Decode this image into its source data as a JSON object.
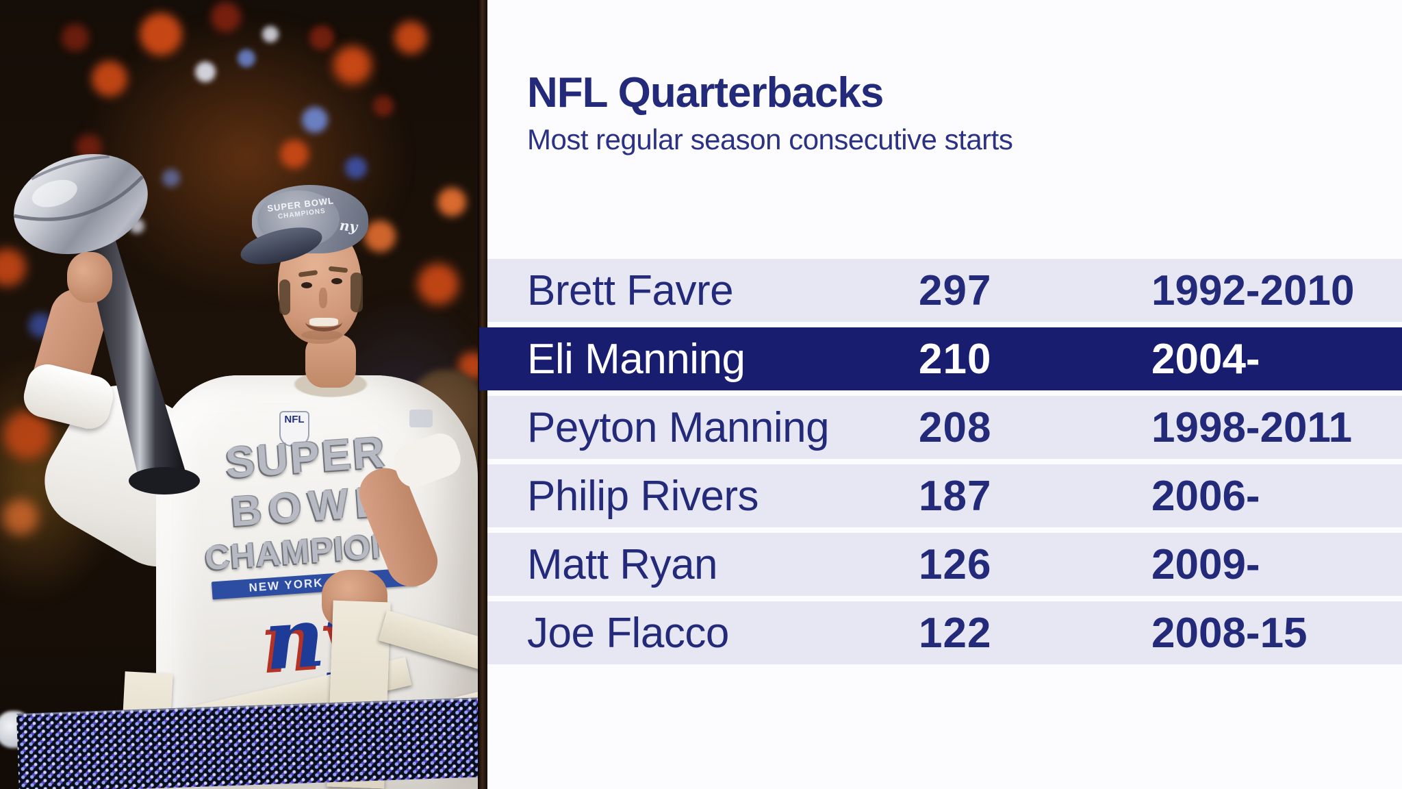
{
  "chart_data": {
    "type": "table",
    "title": "NFL Quarterbacks",
    "subtitle": "Most regular season consecutive starts",
    "rows": [
      {
        "player": "Brett Favre",
        "starts": 297,
        "years": "1992-2010",
        "highlighted": false
      },
      {
        "player": "Eli Manning",
        "starts": 210,
        "years": "2004-",
        "highlighted": true
      },
      {
        "player": "Peyton Manning",
        "starts": 208,
        "years": "1998-2011",
        "highlighted": false
      },
      {
        "player": "Philip Rivers",
        "starts": 187,
        "years": "2006-",
        "highlighted": false
      },
      {
        "player": "Matt Ryan",
        "starts": 126,
        "years": "2009-",
        "highlighted": false
      },
      {
        "player": "Joe Flacco",
        "starts": 122,
        "years": "2008-15",
        "highlighted": false
      }
    ],
    "colors": {
      "text_navy": "#232a7a",
      "title_navy": "#1f2478",
      "subtitle_navy": "#2b3285",
      "row_background": "#e6e7f2",
      "highlight_background": "#191d70",
      "highlight_text": "#ffffff",
      "panel_background": "#fcfcfe"
    },
    "legend_position": "none",
    "grid": false
  },
  "photo": {
    "alt": "Eli Manning holding the Vince Lombardi Trophy amid confetti",
    "shirt": {
      "line1": "SUPER",
      "line2": "BOWL",
      "line3": "CHAMPIONS",
      "band": "NEW YORK GIANTS",
      "logo": "ny",
      "patch": "NFL"
    },
    "cap": {
      "front_line1": "SUPER BOWL",
      "front_line2": "CHAMPIONS",
      "side_logo": "ny"
    },
    "colors": {
      "orange": "#d14a16",
      "orange2": "#ef7433",
      "red": "#8e2410",
      "blue": "#7390e2",
      "blue2": "#4059bd",
      "white": "#eef1ff",
      "skin": "#d9a58a",
      "shirt_white": "#f4f2ef",
      "cap_gray": "#8f95a3",
      "trophy_silver": "#cfd2d8",
      "rail_cream": "#e9e2d2",
      "led_dot": "#93a6f2",
      "divider_brown": "#3d2718"
    }
  }
}
